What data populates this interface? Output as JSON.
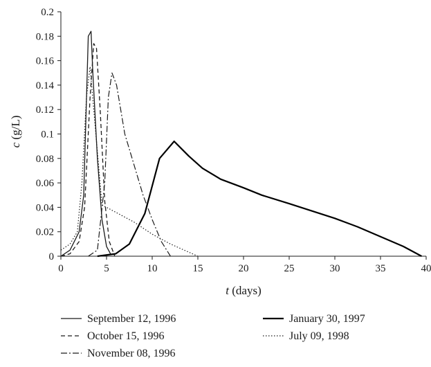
{
  "chart_data": {
    "type": "line",
    "xlabel": {
      "var": "t",
      "unit": " (days)"
    },
    "ylabel": {
      "var": "c",
      "unit": " (g/L)"
    },
    "xlim": [
      0,
      40
    ],
    "ylim": [
      0,
      0.2
    ],
    "xticks": [
      0,
      5,
      10,
      15,
      20,
      25,
      30,
      35,
      40
    ],
    "yticks": [
      0,
      0.02,
      0.04,
      0.06,
      0.08,
      0.1,
      0.12,
      0.14,
      0.16,
      0.18,
      0.2
    ],
    "grid": false,
    "legend_position": "bottom",
    "series": [
      {
        "name": "September 12, 1996",
        "style": "solid-thin",
        "color": "#1a1a1a",
        "x": [
          0,
          1,
          2,
          2.5,
          3.0,
          3.3,
          3.5,
          4.0,
          4.5,
          5.0,
          5.5
        ],
        "y": [
          0,
          0.005,
          0.02,
          0.05,
          0.18,
          0.184,
          0.15,
          0.08,
          0.03,
          0.008,
          0.001
        ]
      },
      {
        "name": "October 15, 1996",
        "style": "dashed",
        "color": "#1a1a1a",
        "x": [
          0,
          1,
          2,
          2.6,
          3.2,
          3.6,
          3.9,
          4.3,
          4.8,
          5.3,
          5.9
        ],
        "y": [
          0,
          0.002,
          0.012,
          0.04,
          0.13,
          0.174,
          0.17,
          0.12,
          0.045,
          0.012,
          0.0
        ]
      },
      {
        "name": "November 08, 1996",
        "style": "dashdot",
        "color": "#1a1a1a",
        "x": [
          3.0,
          4.0,
          4.8,
          5.2,
          5.6,
          6.1,
          7.0,
          8.0,
          9.0,
          10.0,
          11.0,
          12.0
        ],
        "y": [
          0.0,
          0.005,
          0.06,
          0.13,
          0.15,
          0.14,
          0.1,
          0.075,
          0.05,
          0.03,
          0.012,
          0.0
        ]
      },
      {
        "name": "January 30, 1997",
        "style": "solid-thick",
        "color": "#000000",
        "x": [
          4,
          6,
          7.5,
          9.2,
          10.8,
          12.4,
          14,
          15.5,
          17.5,
          20,
          22,
          25,
          27.5,
          30,
          32.5,
          35,
          37.5,
          39.5
        ],
        "y": [
          0,
          0.002,
          0.01,
          0.035,
          0.08,
          0.094,
          0.082,
          0.072,
          0.063,
          0.056,
          0.05,
          0.043,
          0.037,
          0.031,
          0.024,
          0.016,
          0.008,
          0.0
        ]
      },
      {
        "name": "July 09, 1998",
        "style": "dotted",
        "color": "#1a1a1a",
        "x": [
          0,
          1,
          1.8,
          2.3,
          2.8,
          3.2,
          3.6,
          4.5,
          6,
          8,
          10,
          12,
          13.5,
          15
        ],
        "y": [
          0.005,
          0.01,
          0.02,
          0.06,
          0.13,
          0.155,
          0.12,
          0.042,
          0.036,
          0.028,
          0.018,
          0.01,
          0.005,
          0.0
        ]
      }
    ]
  }
}
